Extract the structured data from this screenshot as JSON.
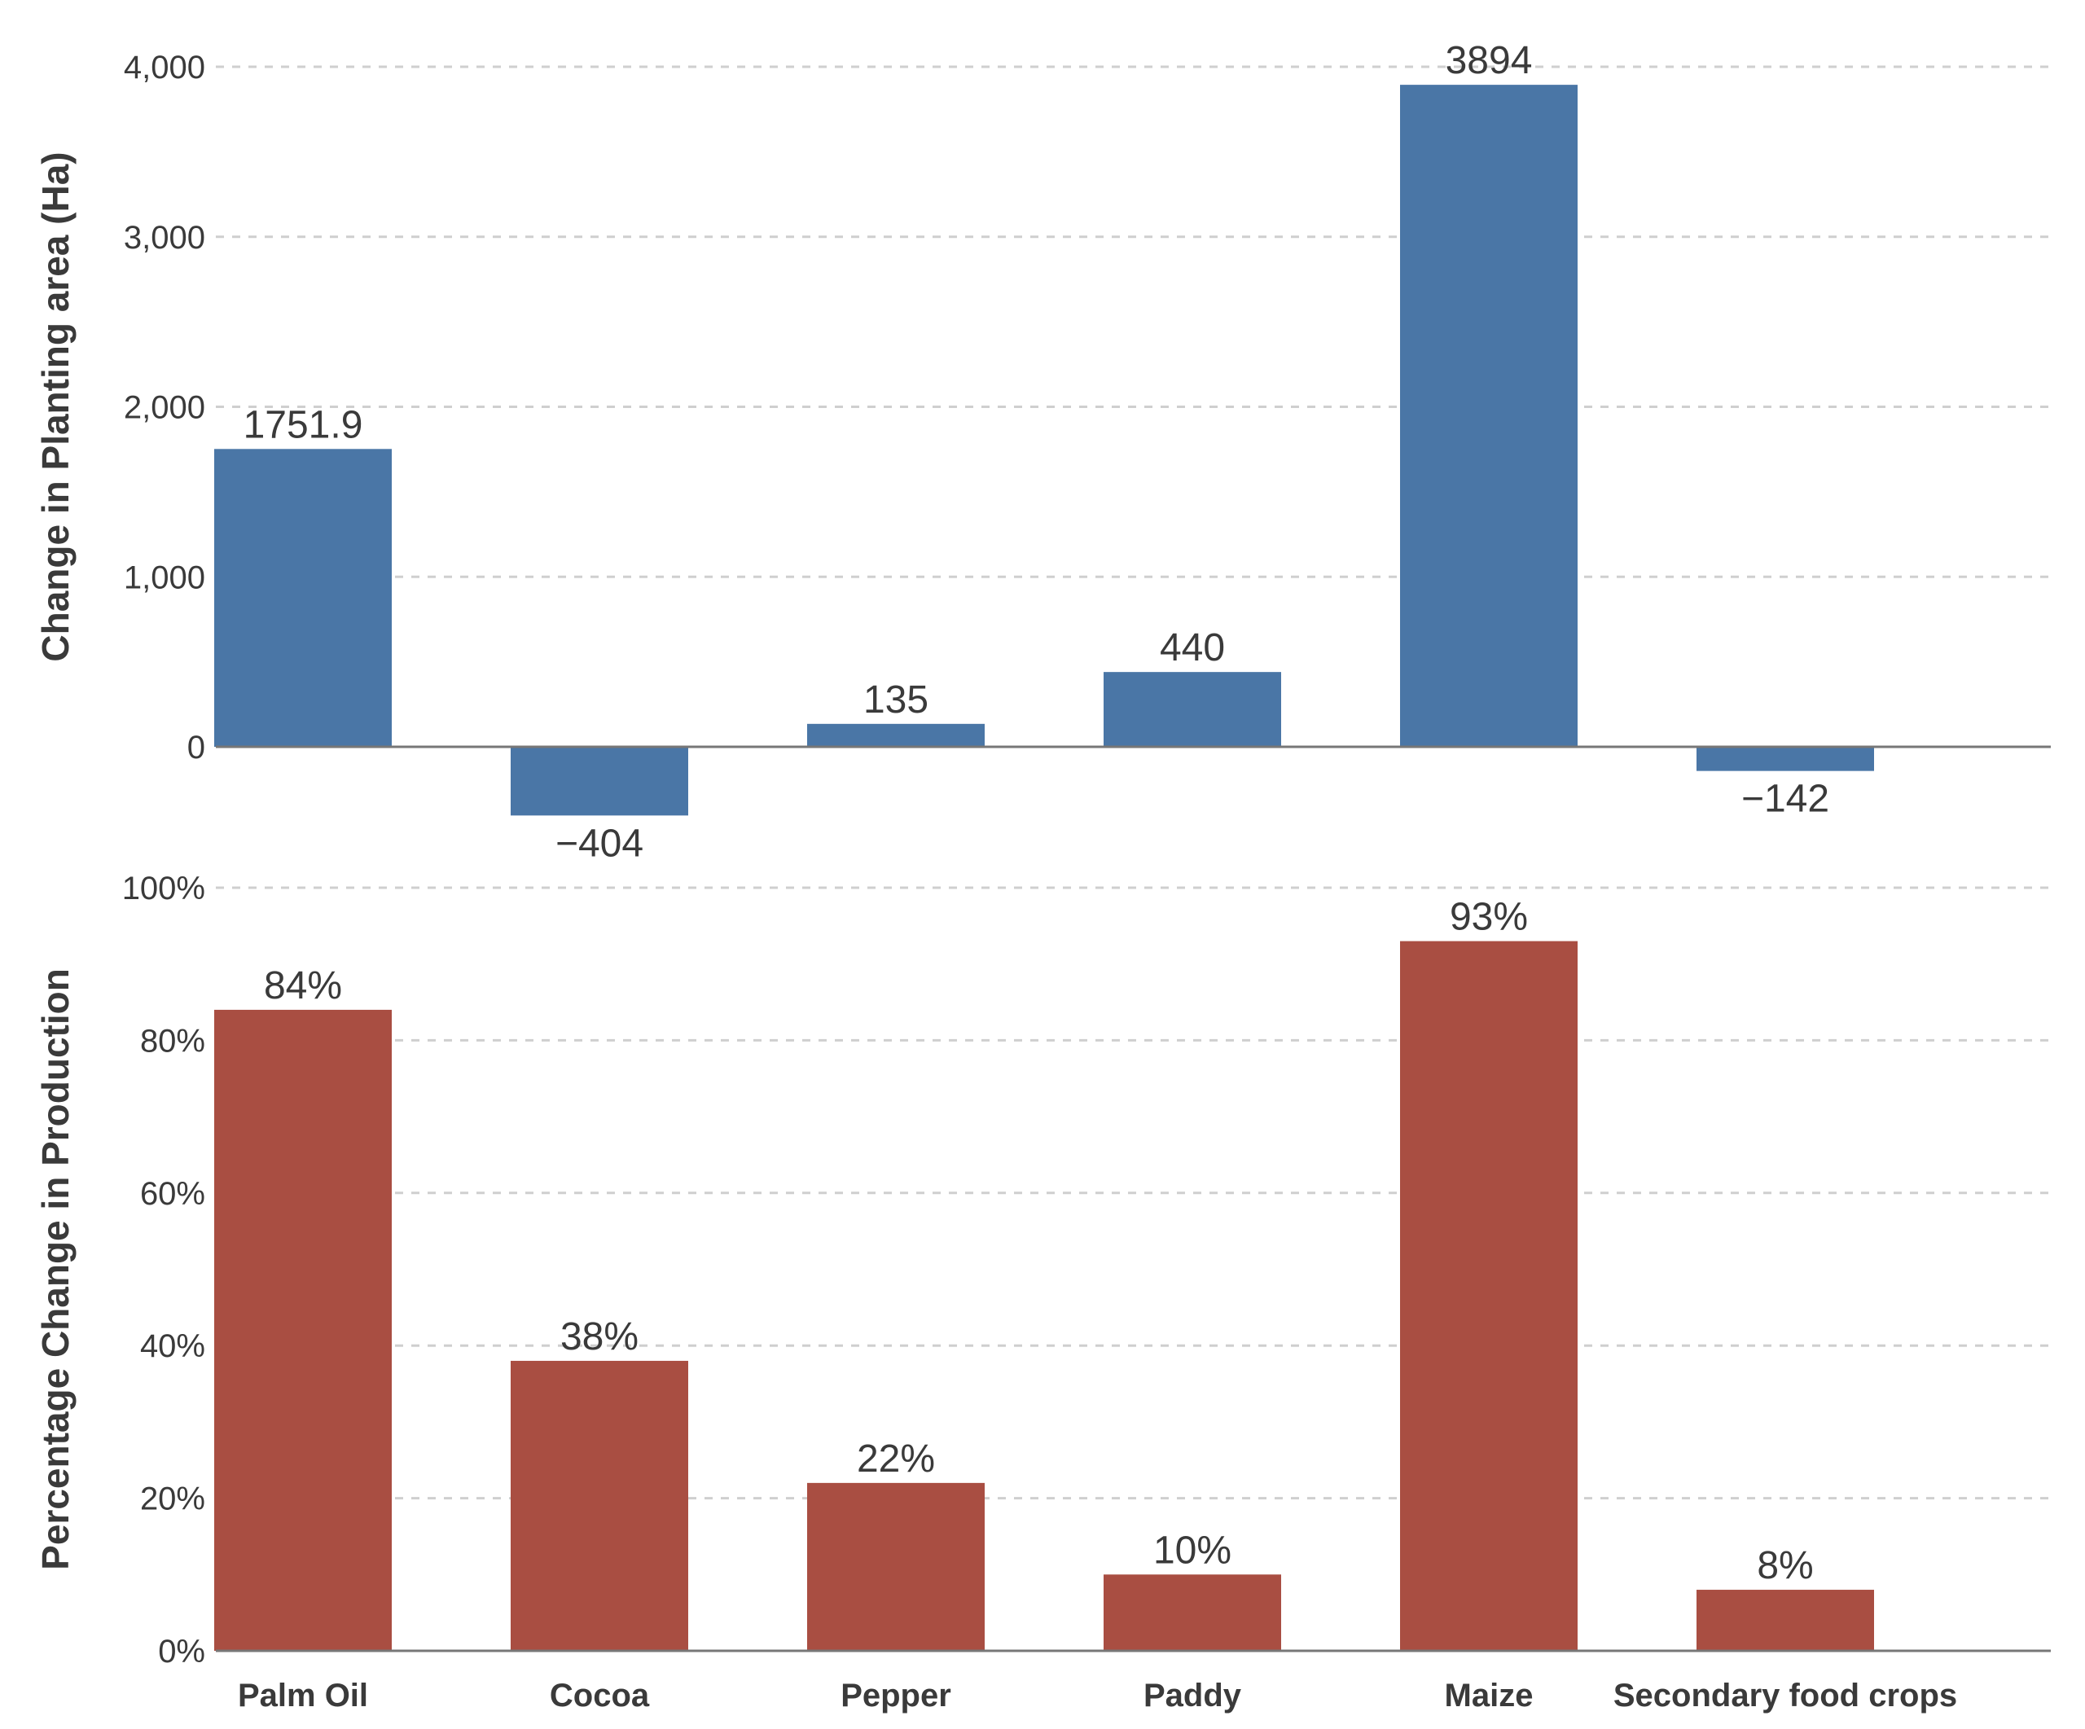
{
  "chart_data": [
    {
      "type": "bar",
      "categories": [
        "Palm Oil",
        "Cocoa",
        "Pepper",
        "Paddy",
        "Maize",
        "Secondary food crops"
      ],
      "values": [
        1751.9,
        -404,
        135,
        440,
        3894,
        -142
      ],
      "value_labels": [
        "1751.9",
        "−404",
        "135",
        "440",
        "3894",
        "−142"
      ],
      "ylabel": "Change in  Planting area (Ha)",
      "yticks": [
        0,
        1000,
        2000,
        3000,
        4000
      ],
      "ytick_labels": [
        "0",
        "1,000",
        "2,000",
        "3,000",
        "4,000"
      ],
      "ylim": [
        -404,
        4000
      ],
      "grid": true,
      "color": "#4a76a6"
    },
    {
      "type": "bar",
      "categories": [
        "Palm Oil",
        "Cocoa",
        "Pepper",
        "Paddy",
        "Maize",
        "Secondary food crops"
      ],
      "values": [
        84,
        38,
        22,
        10,
        93,
        8
      ],
      "value_labels": [
        "84%",
        "38%",
        "22%",
        "10%",
        "93%",
        "8%"
      ],
      "ylabel": "Percentage Change in  Production",
      "yticks": [
        0,
        20,
        40,
        60,
        80,
        100
      ],
      "ytick_labels": [
        "0%",
        "20%",
        "40%",
        "60%",
        "80%",
        "100%"
      ],
      "ylim": [
        0,
        100
      ],
      "grid": true,
      "color": "#a94e42"
    }
  ]
}
